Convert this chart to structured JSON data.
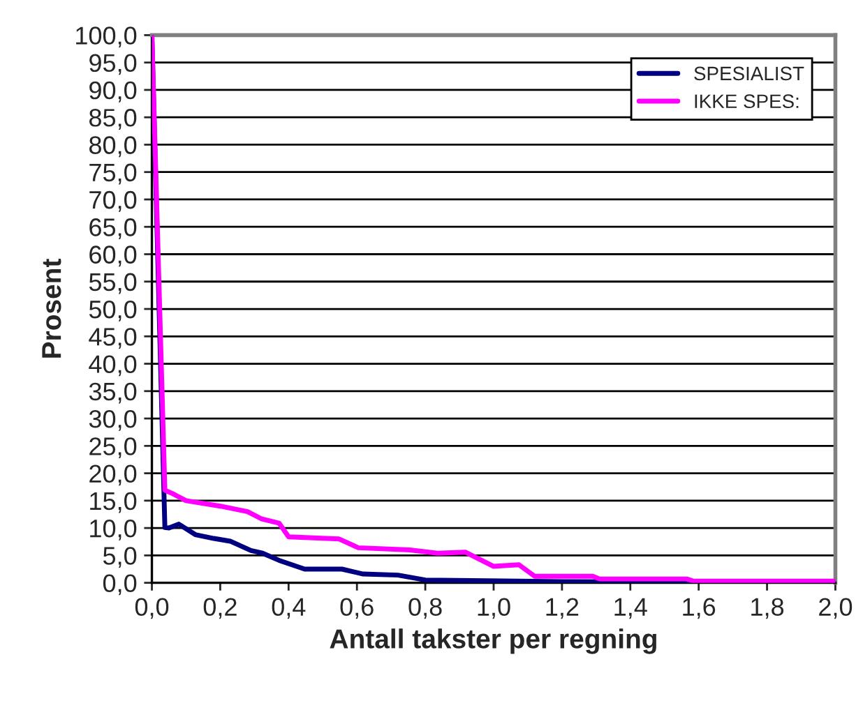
{
  "chart_data": {
    "type": "line",
    "xlabel": "Antall takster per regning",
    "ylabel": "Prosent",
    "series": [
      {
        "name": "SPESIALIST",
        "color": "#000080",
        "x": [
          0,
          0.038,
          0.05,
          0.079,
          0.127,
          0.181,
          0.229,
          0.29,
          0.324,
          0.372,
          0.447,
          0.556,
          0.618,
          0.72,
          0.8,
          1.2,
          2.0
        ],
        "values": [
          100,
          10.1,
          10.0,
          10.7,
          8.8,
          8.1,
          7.6,
          5.9,
          5.4,
          4.1,
          2.5,
          2.5,
          1.6,
          1.4,
          0.5,
          0.2,
          0.1
        ]
      },
      {
        "name": "IKKE SPES:",
        "color": "#ff00ff",
        "x": [
          0,
          0.038,
          0.06,
          0.1,
          0.2,
          0.28,
          0.32,
          0.372,
          0.4,
          0.548,
          0.604,
          0.754,
          0.836,
          0.917,
          1.0,
          1.074,
          1.12,
          1.29,
          1.31,
          1.565,
          1.585,
          2.0
        ],
        "values": [
          100,
          16.9,
          16.3,
          15.0,
          14.0,
          13.0,
          11.7,
          10.9,
          8.4,
          8.0,
          6.4,
          6.0,
          5.4,
          5.6,
          3.0,
          3.3,
          1.2,
          1.2,
          0.7,
          0.7,
          0.3,
          0.3
        ]
      }
    ],
    "xlim": [
      0,
      2.0
    ],
    "xticks": [
      {
        "value": 0,
        "label": "0,0"
      },
      {
        "value": 0.2,
        "label": "0,2"
      },
      {
        "value": 0.4,
        "label": "0,4"
      },
      {
        "value": 0.6,
        "label": "0,6"
      },
      {
        "value": 0.8,
        "label": "0,8"
      },
      {
        "value": 1.0,
        "label": "1,0"
      },
      {
        "value": 1.2,
        "label": "1,2"
      },
      {
        "value": 1.4,
        "label": "1,4"
      },
      {
        "value": 1.6,
        "label": "1,6"
      },
      {
        "value": 1.8,
        "label": "1,8"
      },
      {
        "value": 2.0,
        "label": "2,0"
      }
    ],
    "ylim": [
      0,
      100
    ],
    "yticks": [
      {
        "value": 0,
        "label": "0,0"
      },
      {
        "value": 5,
        "label": "5,0"
      },
      {
        "value": 10,
        "label": "10,0"
      },
      {
        "value": 15,
        "label": "15,0"
      },
      {
        "value": 20,
        "label": "20,0"
      },
      {
        "value": 25,
        "label": "25,0"
      },
      {
        "value": 30,
        "label": "30,0"
      },
      {
        "value": 35,
        "label": "35,0"
      },
      {
        "value": 40,
        "label": "40,0"
      },
      {
        "value": 45,
        "label": "45,0"
      },
      {
        "value": 50,
        "label": "50,0"
      },
      {
        "value": 55,
        "label": "55,0"
      },
      {
        "value": 60,
        "label": "60,0"
      },
      {
        "value": 65,
        "label": "65,0"
      },
      {
        "value": 70,
        "label": "70,0"
      },
      {
        "value": 75,
        "label": "75,0"
      },
      {
        "value": 80,
        "label": "80,0"
      },
      {
        "value": 85,
        "label": "85,0"
      },
      {
        "value": 90,
        "label": "90,0"
      },
      {
        "value": 95,
        "label": "95,0"
      },
      {
        "value": 100,
        "label": "100,0"
      }
    ],
    "grid": "y",
    "legend": "top right",
    "marker": "none",
    "line_style": "solid"
  }
}
